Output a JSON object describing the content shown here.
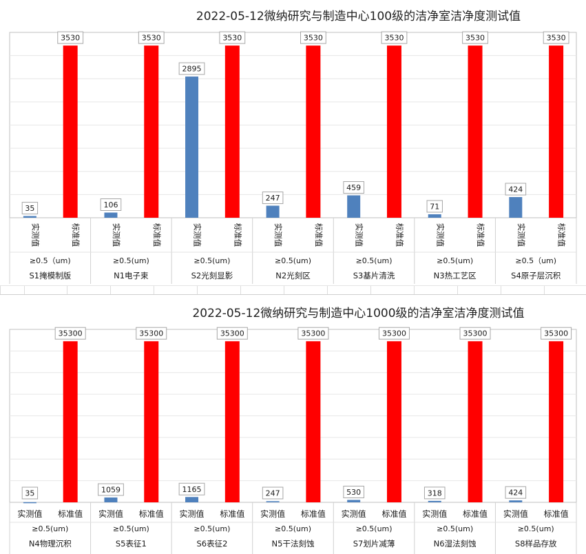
{
  "chart_data": [
    {
      "type": "bar",
      "title": "2022-05-12微纳研究与制造中心100级的洁净室洁净度测试值",
      "series": [
        {
          "name": "实测值",
          "values": [
            35,
            106,
            2895,
            247,
            459,
            71,
            424
          ],
          "color": "#4f81bd"
        },
        {
          "name": "标准值",
          "values": [
            3530,
            3530,
            3530,
            3530,
            3530,
            3530,
            3530
          ],
          "color": "#ff0000"
        }
      ],
      "groups": [
        {
          "size": "≥0.5（um)",
          "area": "S1掩模制版"
        },
        {
          "size": "≥0.5(um)",
          "area": "N1电子束"
        },
        {
          "size": "≥0.5(um)",
          "area": "S2光刻显影"
        },
        {
          "size": "≥0.5(um)",
          "area": "N2光刻区"
        },
        {
          "size": "≥0.5(um)",
          "area": "S3基片清洗"
        },
        {
          "size": "≥0.5(um)",
          "area": "N3热工艺区"
        },
        {
          "size": "≥0.5（um)",
          "area": "S4原子层沉积"
        }
      ],
      "ylim": [
        0,
        3800
      ],
      "grid": true,
      "category_label_orientation": "vertical"
    },
    {
      "type": "bar",
      "title": "2022-05-12微纳研究与制造中心1000级的洁净室洁净度测试值",
      "series": [
        {
          "name": "实测值",
          "values": [
            35,
            1059,
            1165,
            247,
            530,
            318,
            424
          ],
          "color": "#4f81bd"
        },
        {
          "name": "标准值",
          "values": [
            35300,
            35300,
            35300,
            35300,
            35300,
            35300,
            35300
          ],
          "color": "#ff0000"
        }
      ],
      "groups": [
        {
          "size": "≥0.5(um)",
          "area": "N4物理沉积"
        },
        {
          "size": "≥0.5(um)",
          "area": "S5表征1"
        },
        {
          "size": "≥0.5(um)",
          "area": "S6表征2"
        },
        {
          "size": "≥0.5(um)",
          "area": "N5干法刻蚀"
        },
        {
          "size": "≥0.5(um)",
          "area": "S7划片减薄"
        },
        {
          "size": "≥0.5(um)",
          "area": "N6湿法刻蚀"
        },
        {
          "size": "≥0.5(um)",
          "area": "S8样品存放"
        }
      ],
      "ylim": [
        0,
        37900
      ],
      "grid": true,
      "category_label_orientation": "horizontal"
    }
  ]
}
